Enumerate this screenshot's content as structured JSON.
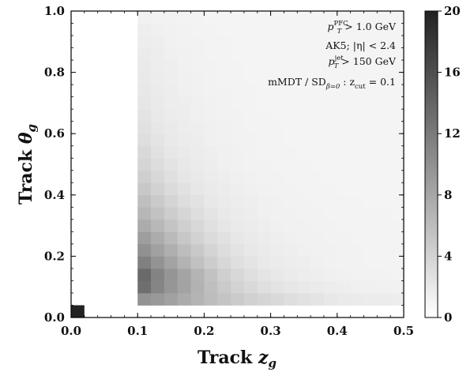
{
  "chart_data": {
    "type": "heatmap",
    "xlabel_prefix": "Track ",
    "xlabel_var": "z",
    "xlabel_sub": "g",
    "ylabel_prefix": "Track ",
    "ylabel_var": "θ",
    "ylabel_sub": "g",
    "xlim": [
      0.0,
      0.5
    ],
    "ylim": [
      0.0,
      1.0
    ],
    "x_ticks": [
      "0.0",
      "0.1",
      "0.2",
      "0.3",
      "0.4",
      "0.5"
    ],
    "y_ticks": [
      "0.0",
      "0.2",
      "0.4",
      "0.6",
      "0.8",
      "1.0"
    ],
    "colorbar": {
      "range": [
        0,
        20
      ],
      "ticks": [
        "0",
        "4",
        "8",
        "12",
        "16",
        "20"
      ],
      "colormap": "white-to-black",
      "low_color": "#ffffff",
      "high_color": "#222222"
    },
    "annotations": [
      {
        "main": "p",
        "sup": "PFC",
        "sub": "T",
        "rest": " > 1.0 GeV"
      },
      {
        "main": "AK5; |η| < 2.4"
      },
      {
        "main": "p",
        "sup": "jet",
        "sub": "T",
        "rest": " > 150 GeV"
      },
      {
        "main": "mMDT / SD",
        "sub": "β=0",
        "rest": " : z",
        "sub2": "cut",
        "rest2": " = 0.1"
      }
    ],
    "grid": false,
    "bins": {
      "main_region": {
        "x_range": [
          0.1,
          0.5
        ],
        "y_range": [
          0.04,
          1.0
        ],
        "x_bins": 20,
        "y_bins": 24,
        "z_rows_bottom_to_top": [
          [
            9.8,
            9.2,
            8.5,
            7.6,
            6.8,
            6.0,
            5.3,
            4.7,
            4.2,
            3.8,
            3.4,
            3.0,
            2.7,
            2.4,
            2.1,
            1.9,
            1.8,
            1.7,
            1.7,
            1.6
          ],
          [
            13.0,
            11.0,
            9.5,
            8.3,
            7.0,
            5.8,
            4.8,
            4.0,
            3.4,
            2.9,
            2.5,
            2.2,
            2.0,
            1.8,
            1.6,
            1.5,
            1.4,
            1.4,
            1.3,
            1.3
          ],
          [
            13.5,
            11.2,
            9.6,
            8.2,
            6.8,
            5.5,
            4.3,
            3.5,
            2.9,
            2.4,
            2.1,
            1.8,
            1.6,
            1.5,
            1.4,
            1.3,
            1.2,
            1.2,
            1.2,
            1.1
          ],
          [
            11.5,
            9.8,
            8.3,
            6.9,
            5.6,
            4.5,
            3.6,
            2.9,
            2.4,
            2.0,
            1.8,
            1.6,
            1.5,
            1.4,
            1.3,
            1.2,
            1.2,
            1.1,
            1.1,
            1.1
          ],
          [
            10.0,
            8.5,
            7.2,
            6.0,
            4.9,
            3.9,
            3.1,
            2.5,
            2.1,
            1.8,
            1.6,
            1.5,
            1.4,
            1.3,
            1.3,
            1.2,
            1.2,
            1.1,
            1.1,
            1.1
          ],
          [
            8.8,
            7.5,
            6.2,
            5.1,
            4.1,
            3.3,
            2.7,
            2.2,
            1.9,
            1.7,
            1.5,
            1.4,
            1.3,
            1.3,
            1.2,
            1.2,
            1.1,
            1.1,
            1.1,
            1.1
          ],
          [
            7.5,
            6.4,
            5.3,
            4.3,
            3.5,
            2.8,
            2.3,
            1.9,
            1.7,
            1.5,
            1.4,
            1.3,
            1.3,
            1.2,
            1.2,
            1.1,
            1.1,
            1.1,
            1.1,
            1.1
          ],
          [
            6.5,
            5.5,
            4.5,
            3.7,
            3.0,
            2.4,
            2.0,
            1.8,
            1.6,
            1.4,
            1.3,
            1.3,
            1.2,
            1.2,
            1.1,
            1.1,
            1.1,
            1.1,
            1.1,
            1.0
          ],
          [
            5.8,
            4.8,
            3.9,
            3.1,
            2.6,
            2.1,
            1.8,
            1.6,
            1.5,
            1.4,
            1.3,
            1.2,
            1.2,
            1.1,
            1.1,
            1.1,
            1.1,
            1.0,
            1.0,
            1.0
          ],
          [
            5.0,
            4.1,
            3.3,
            2.7,
            2.2,
            1.9,
            1.7,
            1.5,
            1.4,
            1.3,
            1.2,
            1.2,
            1.1,
            1.1,
            1.1,
            1.0,
            1.0,
            1.0,
            1.0,
            1.0
          ],
          [
            4.3,
            3.5,
            2.8,
            2.3,
            2.0,
            1.7,
            1.5,
            1.4,
            1.3,
            1.2,
            1.2,
            1.1,
            1.1,
            1.1,
            1.0,
            1.0,
            1.0,
            1.0,
            1.0,
            1.0
          ],
          [
            3.8,
            3.1,
            2.5,
            2.1,
            1.8,
            1.6,
            1.4,
            1.3,
            1.2,
            1.2,
            1.1,
            1.1,
            1.1,
            1.0,
            1.0,
            1.0,
            1.0,
            1.0,
            1.0,
            1.0
          ],
          [
            3.4,
            2.7,
            2.2,
            1.9,
            1.7,
            1.5,
            1.4,
            1.3,
            1.2,
            1.1,
            1.1,
            1.1,
            1.0,
            1.0,
            1.0,
            1.0,
            1.0,
            1.0,
            1.0,
            1.0
          ],
          [
            3.0,
            2.4,
            2.0,
            1.7,
            1.6,
            1.4,
            1.3,
            1.2,
            1.2,
            1.1,
            1.1,
            1.0,
            1.0,
            1.0,
            1.0,
            1.0,
            1.0,
            1.0,
            1.0,
            1.0
          ],
          [
            2.7,
            2.2,
            1.9,
            1.6,
            1.5,
            1.4,
            1.3,
            1.2,
            1.1,
            1.1,
            1.1,
            1.0,
            1.0,
            1.0,
            1.0,
            1.0,
            1.0,
            1.0,
            1.0,
            1.0
          ],
          [
            2.5,
            2.0,
            1.7,
            1.6,
            1.4,
            1.3,
            1.2,
            1.2,
            1.1,
            1.1,
            1.0,
            1.0,
            1.0,
            1.0,
            1.0,
            1.0,
            1.0,
            1.0,
            1.0,
            1.0
          ],
          [
            2.3,
            1.9,
            1.6,
            1.5,
            1.4,
            1.3,
            1.2,
            1.1,
            1.1,
            1.0,
            1.0,
            1.0,
            1.0,
            1.0,
            1.0,
            1.0,
            1.0,
            1.0,
            1.0,
            1.0
          ],
          [
            2.1,
            1.8,
            1.6,
            1.4,
            1.3,
            1.2,
            1.2,
            1.1,
            1.1,
            1.0,
            1.0,
            1.0,
            1.0,
            1.0,
            1.0,
            1.0,
            1.0,
            1.0,
            1.0,
            1.0
          ],
          [
            2.0,
            1.7,
            1.5,
            1.4,
            1.3,
            1.2,
            1.1,
            1.1,
            1.0,
            1.0,
            1.0,
            1.0,
            1.0,
            1.0,
            1.0,
            1.0,
            1.0,
            1.0,
            1.0,
            1.0
          ],
          [
            1.9,
            1.6,
            1.5,
            1.3,
            1.2,
            1.2,
            1.1,
            1.1,
            1.0,
            1.0,
            1.0,
            1.0,
            1.0,
            1.0,
            1.0,
            1.0,
            1.0,
            1.0,
            1.0,
            1.0
          ],
          [
            1.8,
            1.6,
            1.4,
            1.3,
            1.2,
            1.1,
            1.1,
            1.0,
            1.0,
            1.0,
            1.0,
            1.0,
            1.0,
            1.0,
            1.0,
            1.0,
            1.0,
            1.0,
            1.0,
            1.0
          ],
          [
            1.6,
            1.5,
            1.3,
            1.2,
            1.2,
            1.1,
            1.1,
            1.0,
            1.0,
            1.0,
            1.0,
            1.0,
            1.0,
            1.0,
            1.0,
            1.0,
            1.0,
            1.0,
            1.0,
            1.0
          ],
          [
            1.5,
            1.4,
            1.3,
            1.2,
            1.1,
            1.1,
            1.0,
            1.0,
            1.0,
            1.0,
            1.0,
            1.0,
            1.0,
            1.0,
            1.0,
            1.0,
            1.0,
            1.0,
            1.0,
            1.0
          ],
          [
            1.3,
            1.2,
            1.2,
            1.1,
            1.1,
            1.0,
            1.0,
            1.0,
            1.0,
            1.0,
            1.0,
            1.0,
            1.0,
            1.0,
            1.0,
            1.0,
            1.0,
            1.0,
            1.0,
            1.0
          ]
        ]
      },
      "corner_bin": {
        "x_range": [
          0.0,
          0.02
        ],
        "y_range": [
          0.0,
          0.04
        ],
        "z": 20
      }
    }
  }
}
